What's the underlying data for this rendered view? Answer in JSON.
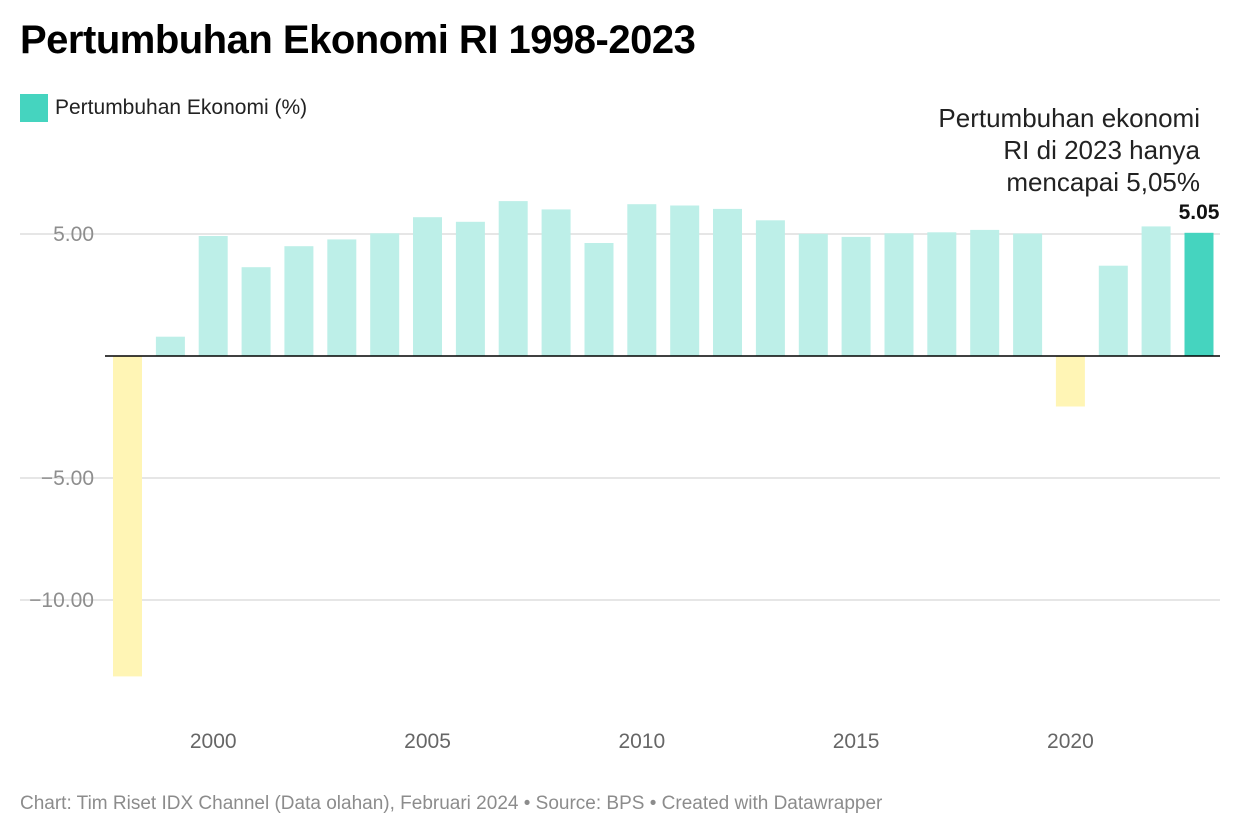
{
  "header": {
    "title": "Pertumbuhan Ekonomi RI 1998-2023"
  },
  "legend": {
    "label": "Pertumbuhan Ekonomi (%)",
    "color": "#45d4bf"
  },
  "annotation": {
    "text": "Pertumbuhan ekonomi\nRI di 2023 hanya\nmencapai 5,05%"
  },
  "footer": {
    "text": "Chart: Tim Riset IDX Channel (Data olahan), Februari 2024 • Source: BPS • Created with Datawrapper"
  },
  "colors": {
    "positive": "#bdefe8",
    "negative": "#fff5b5",
    "highlight": "#45d4bf",
    "zero_line": "#000000",
    "grid": "#dddddd"
  },
  "chart_data": {
    "type": "bar",
    "title": "Pertumbuhan Ekonomi RI 1998-2023",
    "xlabel": "",
    "ylabel": "",
    "ylim": [
      -14,
      5.7
    ],
    "grid": true,
    "legend_position": "top-left",
    "y_ticks": [
      5,
      -5,
      -10
    ],
    "y_tick_labels": [
      "5.00",
      "−5.00",
      "−10.00"
    ],
    "x_ticks": [
      2000,
      2005,
      2010,
      2015,
      2020
    ],
    "highlight": {
      "year": 2023,
      "label": "5.05"
    },
    "series": [
      {
        "name": "Pertumbuhan Ekonomi (%)",
        "x": [
          1998,
          1999,
          2000,
          2001,
          2002,
          2003,
          2004,
          2005,
          2006,
          2007,
          2008,
          2009,
          2010,
          2011,
          2012,
          2013,
          2014,
          2015,
          2016,
          2017,
          2018,
          2019,
          2020,
          2021,
          2022,
          2023
        ],
        "values": [
          -13.13,
          0.79,
          4.92,
          3.64,
          4.5,
          4.78,
          5.03,
          5.69,
          5.5,
          6.35,
          6.01,
          4.63,
          6.22,
          6.17,
          6.03,
          5.56,
          5.01,
          4.88,
          5.03,
          5.07,
          5.17,
          5.02,
          -2.07,
          3.7,
          5.31,
          5.05
        ]
      }
    ]
  }
}
